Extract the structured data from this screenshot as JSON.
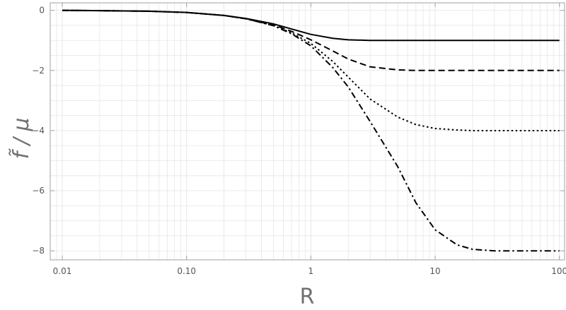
{
  "chart_data": {
    "type": "line",
    "title": "",
    "xlabel": "R",
    "ylabel": "f̃ / μ",
    "x_scale": "log",
    "xlim": [
      0.008,
      110
    ],
    "ylim": [
      -8.3,
      0.25
    ],
    "grid": true,
    "legend": "none",
    "x_ticks": [
      {
        "value": 0.01,
        "label": "0.01"
      },
      {
        "value": 0.1,
        "label": "0.10"
      },
      {
        "value": 1,
        "label": "1"
      },
      {
        "value": 10,
        "label": "10"
      },
      {
        "value": 100,
        "label": "100"
      }
    ],
    "y_ticks": [
      {
        "value": 0,
        "label": "0"
      },
      {
        "value": -2,
        "label": "−2"
      },
      {
        "value": -4,
        "label": "−4"
      },
      {
        "value": -6,
        "label": "−6"
      },
      {
        "value": -8,
        "label": "−8"
      }
    ],
    "x": [
      0.01,
      0.02,
      0.05,
      0.1,
      0.2,
      0.3,
      0.5,
      0.7,
      1,
      1.5,
      2,
      3,
      5,
      7,
      10,
      15,
      20,
      30,
      50,
      70,
      100
    ],
    "series": [
      {
        "style": "solid",
        "values": [
          0,
          -0.01,
          -0.03,
          -0.07,
          -0.17,
          -0.27,
          -0.45,
          -0.62,
          -0.8,
          -0.93,
          -0.98,
          -1.0,
          -1.0,
          -1.0,
          -1.0,
          -1.0,
          -1.0,
          -1.0,
          -1.0,
          -1.0,
          -1.0
        ]
      },
      {
        "style": "dashed",
        "values": [
          0,
          -0.01,
          -0.03,
          -0.07,
          -0.17,
          -0.28,
          -0.48,
          -0.7,
          -0.98,
          -1.35,
          -1.62,
          -1.88,
          -1.98,
          -2.0,
          -2.0,
          -2.0,
          -2.0,
          -2.0,
          -2.0,
          -2.0,
          -2.0
        ]
      },
      {
        "style": "dotted",
        "values": [
          0,
          -0.01,
          -0.03,
          -0.07,
          -0.17,
          -0.28,
          -0.5,
          -0.75,
          -1.1,
          -1.7,
          -2.22,
          -2.95,
          -3.55,
          -3.8,
          -3.93,
          -3.98,
          -4.0,
          -4.0,
          -4.0,
          -4.0,
          -4.0
        ]
      },
      {
        "style": "dashdot",
        "values": [
          0,
          -0.01,
          -0.03,
          -0.07,
          -0.17,
          -0.28,
          -0.51,
          -0.78,
          -1.18,
          -1.9,
          -2.55,
          -3.7,
          -5.2,
          -6.4,
          -7.3,
          -7.8,
          -7.95,
          -8.0,
          -8.0,
          -8.0,
          -8.0
        ]
      }
    ],
    "colors": {
      "line": "#000000",
      "grid": "#e6e6e6",
      "frame": "#a0a0a0"
    }
  }
}
